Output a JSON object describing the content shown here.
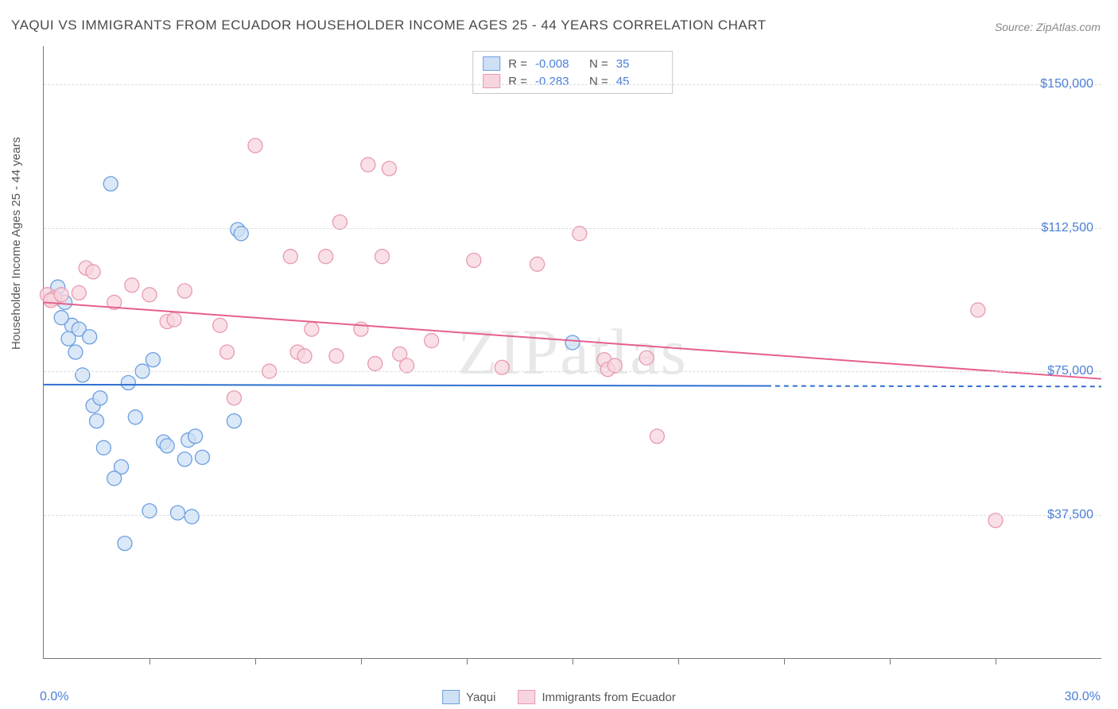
{
  "title": "YAQUI VS IMMIGRANTS FROM ECUADOR HOUSEHOLDER INCOME AGES 25 - 44 YEARS CORRELATION CHART",
  "source": "Source: ZipAtlas.com",
  "watermark": "ZIPatlas",
  "y_axis_title": "Householder Income Ages 25 - 44 years",
  "x_axis": {
    "min_label": "0.0%",
    "max_label": "30.0%",
    "min": 0,
    "max": 30,
    "tick_positions_pct": [
      10,
      20,
      30,
      40,
      50,
      60,
      70,
      80,
      90
    ]
  },
  "y_axis": {
    "min": 0,
    "max": 160000,
    "gridlines": [
      {
        "value": 150000,
        "label": "$150,000"
      },
      {
        "value": 112500,
        "label": "$112,500"
      },
      {
        "value": 75000,
        "label": "$75,000"
      },
      {
        "value": 37500,
        "label": "$37,500"
      }
    ]
  },
  "series": [
    {
      "name": "Yaqui",
      "fill": "#cfe0f5",
      "stroke": "#6b9fe0",
      "line_color": "#2f6fd0",
      "r_value": "-0.008",
      "n_value": "35",
      "trend": {
        "y_left": 71500,
        "y_right": 71000,
        "solid_until_x": 20.5
      },
      "points": [
        {
          "x": 1.9,
          "y": 124000
        },
        {
          "x": 0.8,
          "y": 87000
        },
        {
          "x": 0.6,
          "y": 93000
        },
        {
          "x": 0.3,
          "y": 94500
        },
        {
          "x": 0.5,
          "y": 89000
        },
        {
          "x": 0.7,
          "y": 83500
        },
        {
          "x": 1.0,
          "y": 86000
        },
        {
          "x": 1.3,
          "y": 84000
        },
        {
          "x": 0.9,
          "y": 80000
        },
        {
          "x": 1.1,
          "y": 74000
        },
        {
          "x": 2.8,
          "y": 75000
        },
        {
          "x": 3.1,
          "y": 78000
        },
        {
          "x": 2.4,
          "y": 72000
        },
        {
          "x": 2.6,
          "y": 63000
        },
        {
          "x": 5.5,
          "y": 112000
        },
        {
          "x": 5.6,
          "y": 111000
        },
        {
          "x": 1.4,
          "y": 66000
        },
        {
          "x": 1.6,
          "y": 68000
        },
        {
          "x": 1.5,
          "y": 62000
        },
        {
          "x": 1.7,
          "y": 55000
        },
        {
          "x": 2.2,
          "y": 50000
        },
        {
          "x": 4.1,
          "y": 57000
        },
        {
          "x": 4.3,
          "y": 58000
        },
        {
          "x": 4.0,
          "y": 52000
        },
        {
          "x": 4.5,
          "y": 52500
        },
        {
          "x": 5.4,
          "y": 62000
        },
        {
          "x": 3.0,
          "y": 38500
        },
        {
          "x": 3.8,
          "y": 38000
        },
        {
          "x": 2.3,
          "y": 30000
        },
        {
          "x": 4.2,
          "y": 37000
        },
        {
          "x": 3.4,
          "y": 56500
        },
        {
          "x": 3.5,
          "y": 55500
        },
        {
          "x": 15.0,
          "y": 82500
        },
        {
          "x": 0.4,
          "y": 97000
        },
        {
          "x": 2.0,
          "y": 47000
        }
      ]
    },
    {
      "name": "Immigrants from Ecuador",
      "fill": "#f7d5de",
      "stroke": "#e89ab0",
      "line_color": "#e65f8c",
      "r_value": "-0.283",
      "n_value": "45",
      "trend": {
        "y_left": 93000,
        "y_right": 73000,
        "solid_until_x": 30
      },
      "points": [
        {
          "x": 0.2,
          "y": 94000
        },
        {
          "x": 0.1,
          "y": 95000
        },
        {
          "x": 0.3,
          "y": 94000
        },
        {
          "x": 0.2,
          "y": 93500
        },
        {
          "x": 1.2,
          "y": 102000
        },
        {
          "x": 1.4,
          "y": 101000
        },
        {
          "x": 2.5,
          "y": 97500
        },
        {
          "x": 3.0,
          "y": 95000
        },
        {
          "x": 3.5,
          "y": 88000
        },
        {
          "x": 3.7,
          "y": 88500
        },
        {
          "x": 4.0,
          "y": 96000
        },
        {
          "x": 5.0,
          "y": 87000
        },
        {
          "x": 5.2,
          "y": 80000
        },
        {
          "x": 5.4,
          "y": 68000
        },
        {
          "x": 6.0,
          "y": 134000
        },
        {
          "x": 6.4,
          "y": 75000
        },
        {
          "x": 7.0,
          "y": 105000
        },
        {
          "x": 7.2,
          "y": 80000
        },
        {
          "x": 7.4,
          "y": 79000
        },
        {
          "x": 7.6,
          "y": 86000
        },
        {
          "x": 8.0,
          "y": 105000
        },
        {
          "x": 8.3,
          "y": 79000
        },
        {
          "x": 8.4,
          "y": 114000
        },
        {
          "x": 9.0,
          "y": 86000
        },
        {
          "x": 9.2,
          "y": 129000
        },
        {
          "x": 9.4,
          "y": 77000
        },
        {
          "x": 9.6,
          "y": 105000
        },
        {
          "x": 9.8,
          "y": 128000
        },
        {
          "x": 10.1,
          "y": 79500
        },
        {
          "x": 10.3,
          "y": 76500
        },
        {
          "x": 11.0,
          "y": 83000
        },
        {
          "x": 12.2,
          "y": 104000
        },
        {
          "x": 13.0,
          "y": 76000
        },
        {
          "x": 14.0,
          "y": 103000
        },
        {
          "x": 15.2,
          "y": 111000
        },
        {
          "x": 15.9,
          "y": 78000
        },
        {
          "x": 16.0,
          "y": 75500
        },
        {
          "x": 16.2,
          "y": 76500
        },
        {
          "x": 17.1,
          "y": 78500
        },
        {
          "x": 17.4,
          "y": 58000
        },
        {
          "x": 26.5,
          "y": 91000
        },
        {
          "x": 27.0,
          "y": 36000
        },
        {
          "x": 1.0,
          "y": 95500
        },
        {
          "x": 2.0,
          "y": 93000
        },
        {
          "x": 0.5,
          "y": 95000
        }
      ]
    }
  ],
  "legend_bottom": [
    {
      "label": "Yaqui",
      "fill": "#cfe0f5",
      "stroke": "#6b9fe0"
    },
    {
      "label": "Immigrants from Ecuador",
      "fill": "#f7d5de",
      "stroke": "#e89ab0"
    }
  ],
  "marker_radius": 9,
  "marker_stroke_width": 1.3,
  "trend_line_width": 2
}
